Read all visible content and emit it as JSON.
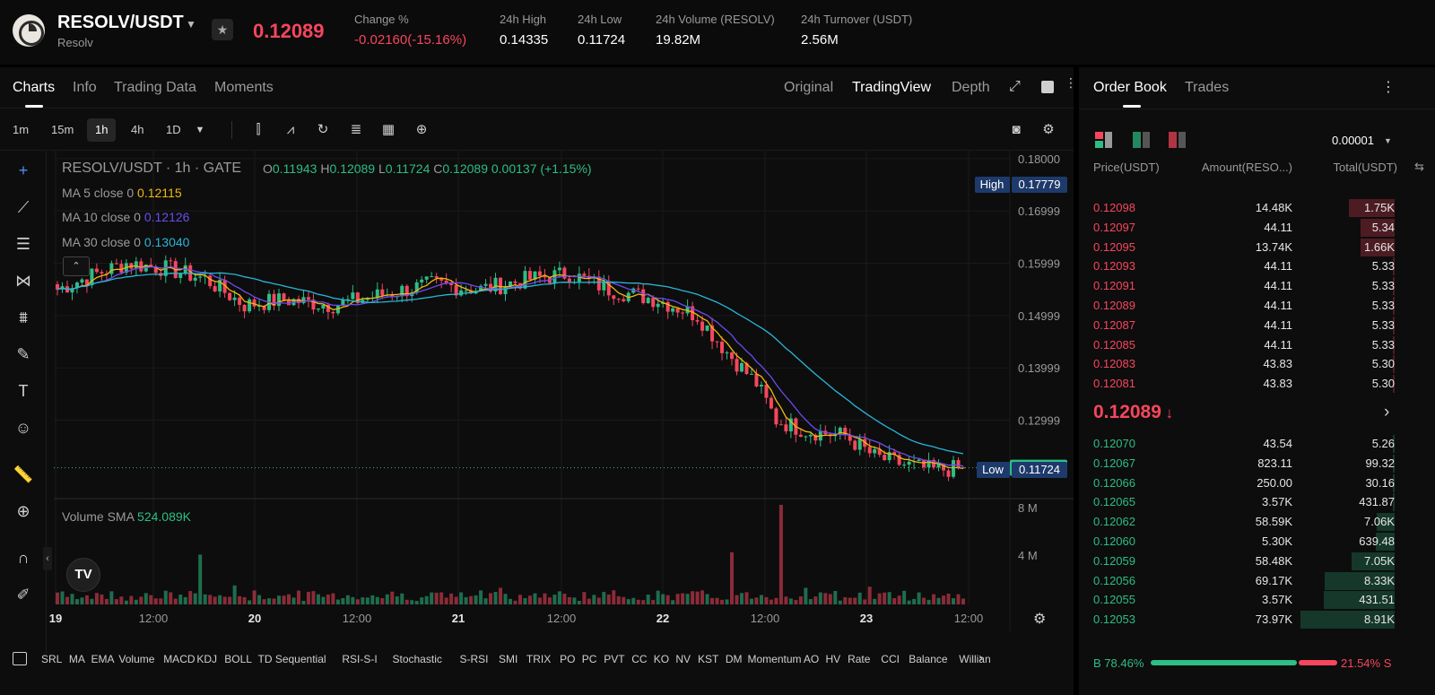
{
  "header": {
    "pair": "RESOLV/USDT",
    "name": "Resolv",
    "price": "0.12089",
    "stats": [
      {
        "label": "Change %",
        "value": "-0.02160(-15.16%)",
        "red": true
      },
      {
        "label": "24h High",
        "value": "0.14335"
      },
      {
        "label": "24h Low",
        "value": "0.11724"
      },
      {
        "label": "24h Volume (RESOLV)",
        "value": "19.82M"
      },
      {
        "label": "24h Turnover (USDT)",
        "value": "2.56M"
      }
    ]
  },
  "chart_tabs": [
    "Charts",
    "Info",
    "Trading Data",
    "Moments"
  ],
  "view_options": [
    "Original",
    "TradingView",
    "Depth"
  ],
  "intervals": [
    "1m",
    "15m",
    "1h",
    "4h",
    "1D"
  ],
  "chart_legend": {
    "symbol": "RESOLV/USDT · 1h · GATE",
    "o_label": "O",
    "o": "0.11943",
    "h_label": "H",
    "h": "0.12089",
    "l_label": "L",
    "l": "0.11724",
    "c_label": "C",
    "c": "0.12089",
    "change": "0.00137 (+1.15%)",
    "ma5_label": "MA 5 close 0",
    "ma5": "0.12115",
    "ma10_label": "MA 10 close 0",
    "ma10": "0.12126",
    "ma30_label": "MA 30 close 0",
    "ma30": "0.13040",
    "volume_label": "Volume SMA",
    "volume": "524.089K"
  },
  "price_axis": [
    "0.18000",
    "0.16999",
    "0.15999",
    "0.14999",
    "0.13999",
    "0.12999"
  ],
  "volume_axis": [
    "8 M",
    "4 M"
  ],
  "time_axis": [
    "19",
    "12:00",
    "20",
    "12:00",
    "21",
    "12:00",
    "22",
    "12:00",
    "23",
    "12:00"
  ],
  "markers": {
    "high_label": "High",
    "high": "0.17779",
    "low_label": "Low",
    "low": "0.11724",
    "last": "0.12089"
  },
  "colors": {
    "up": "#2ebd85",
    "down": "#f6465d",
    "ma5": "#f0b90b",
    "ma10": "#6c4cf0",
    "ma30": "#29b6d8"
  },
  "indicators": [
    "SRL",
    "MA",
    "EMA",
    "Volume",
    "MACD",
    "KDJ",
    "BOLL",
    "TD Sequential",
    "RSI-S-I",
    "Stochastic",
    "S-RSI",
    "SMI",
    "TRIX",
    "PO",
    "PC",
    "PVT",
    "CC",
    "KO",
    "NV",
    "KST",
    "DM",
    "Momentum",
    "AO",
    "HV",
    "Rate",
    "CCI",
    "Balance",
    "Willian"
  ],
  "orderbook": {
    "tabs": [
      "Order Book",
      "Trades"
    ],
    "precision": "0.00001",
    "headers": [
      "Price(USDT)",
      "Amount(RESO...)",
      "Total(USDT)"
    ],
    "asks": [
      {
        "price": "0.12098",
        "amount": "14.48K",
        "total": "1.75K",
        "depth": 0.49
      },
      {
        "price": "0.12097",
        "amount": "44.11",
        "total": "5.34",
        "depth": 0.36
      },
      {
        "price": "0.12095",
        "amount": "13.74K",
        "total": "1.66K",
        "depth": 0.36
      },
      {
        "price": "0.12093",
        "amount": "44.11",
        "total": "5.33",
        "depth": 0.01
      },
      {
        "price": "0.12091",
        "amount": "44.11",
        "total": "5.33",
        "depth": 0.01
      },
      {
        "price": "0.12089",
        "amount": "44.11",
        "total": "5.33",
        "depth": 0.01
      },
      {
        "price": "0.12087",
        "amount": "44.11",
        "total": "5.33",
        "depth": 0.01
      },
      {
        "price": "0.12085",
        "amount": "44.11",
        "total": "5.33",
        "depth": 0.01
      },
      {
        "price": "0.12083",
        "amount": "43.83",
        "total": "5.30",
        "depth": 0.01
      },
      {
        "price": "0.12081",
        "amount": "43.83",
        "total": "5.30",
        "depth": 0.01
      }
    ],
    "mid_price": "0.12089",
    "bids": [
      {
        "price": "0.12070",
        "amount": "43.54",
        "total": "5.26",
        "depth": 0.01
      },
      {
        "price": "0.12067",
        "amount": "823.11",
        "total": "99.32",
        "depth": 0.01
      },
      {
        "price": "0.12066",
        "amount": "250.00",
        "total": "30.16",
        "depth": 0.01
      },
      {
        "price": "0.12065",
        "amount": "3.57K",
        "total": "431.87",
        "depth": 0.02
      },
      {
        "price": "0.12062",
        "amount": "58.59K",
        "total": "7.06K",
        "depth": 0.19
      },
      {
        "price": "0.12060",
        "amount": "5.30K",
        "total": "639.48",
        "depth": 0.2
      },
      {
        "price": "0.12059",
        "amount": "58.48K",
        "total": "7.05K",
        "depth": 0.46
      },
      {
        "price": "0.12056",
        "amount": "69.17K",
        "total": "8.33K",
        "depth": 0.74
      },
      {
        "price": "0.12055",
        "amount": "3.57K",
        "total": "431.51",
        "depth": 0.75
      },
      {
        "price": "0.12053",
        "amount": "73.97K",
        "total": "8.91K",
        "depth": 1.0
      }
    ],
    "buy_ratio": "B 78.46%",
    "sell_ratio": "21.54% S",
    "buy_fraction": 0.7846
  }
}
